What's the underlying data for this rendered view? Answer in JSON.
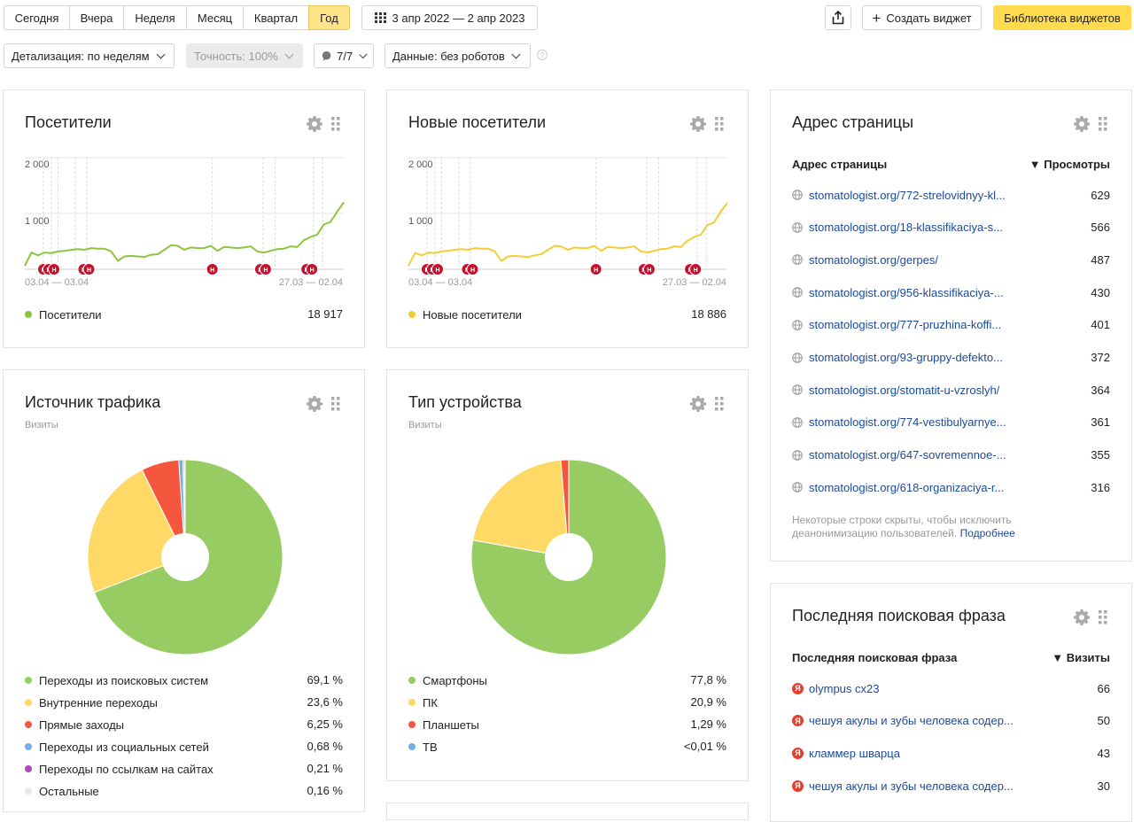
{
  "toolbar": {
    "periods": [
      "Сегодня",
      "Вчера",
      "Неделя",
      "Месяц",
      "Квартал",
      "Год"
    ],
    "active_period": "Год",
    "date_range": "3 апр 2022 — 2 апр 2023",
    "create_widget": "Создать виджет",
    "library": "Библиотека виджетов"
  },
  "filters": {
    "detail": "Детализация: по неделям",
    "accuracy": "Точность: 100%",
    "segments": "7/7",
    "data": "Данные: без роботов"
  },
  "visitors": {
    "title": "Посетители",
    "y_ticks": [
      "2 000",
      "1 000"
    ],
    "date_left": "03.04 — 03.04",
    "date_right": "27.03 — 02.04",
    "legend_label": "Посетители",
    "total": "18 917"
  },
  "new_visitors": {
    "title": "Новые посетители",
    "y_ticks": [
      "2 000",
      "1 000"
    ],
    "date_left": "03.04 — 03.04",
    "date_right": "27.03 — 02.04",
    "legend_label": "Новые посетители",
    "total": "18 886"
  },
  "chart_data": [
    {
      "type": "line",
      "ylim": [
        0,
        2000
      ],
      "series": [
        {
          "name": "Посетители",
          "color": "#8cc63e",
          "values": [
            60,
            300,
            250,
            300,
            290,
            320,
            330,
            350,
            360,
            350,
            380,
            370,
            370,
            320,
            150,
            230,
            240,
            230,
            220,
            260,
            270,
            350,
            430,
            420,
            350,
            390,
            380,
            380,
            420,
            330,
            400,
            390,
            380,
            390,
            410,
            320,
            300,
            330,
            360,
            370,
            410,
            400,
            520,
            580,
            620,
            800,
            850,
            1030,
            1200
          ]
        }
      ]
    },
    {
      "type": "line",
      "ylim": [
        0,
        2000
      ],
      "series": [
        {
          "name": "Новые посетители",
          "color": "#f3cd34",
          "values": [
            60,
            290,
            250,
            300,
            290,
            320,
            330,
            350,
            360,
            350,
            380,
            370,
            370,
            320,
            150,
            230,
            240,
            230,
            220,
            250,
            270,
            350,
            420,
            410,
            350,
            390,
            380,
            380,
            420,
            330,
            400,
            390,
            380,
            390,
            410,
            320,
            300,
            330,
            360,
            370,
            410,
            400,
            510,
            580,
            620,
            790,
            840,
            1030,
            1190
          ]
        }
      ]
    },
    {
      "type": "pie",
      "title": "Источник трафика",
      "labels": [
        "Переходы из поисковых систем",
        "Внутренние переходы",
        "Прямые заходы",
        "Переходы из социальных сетей",
        "Переходы по ссылкам на сайтах",
        "Остальные"
      ],
      "values": [
        69.1,
        23.6,
        6.25,
        0.68,
        0.21,
        0.16
      ],
      "colors": [
        "#96cc62",
        "#ffd966",
        "#f4573d",
        "#73aee6",
        "#a94bba",
        "#e6e6e6"
      ]
    },
    {
      "type": "pie",
      "title": "Тип устройства",
      "labels": [
        "Смартфоны",
        "ПК",
        "Планшеты",
        "ТВ"
      ],
      "values": [
        77.8,
        20.9,
        1.29,
        0.01
      ],
      "colors": [
        "#96cc62",
        "#ffd966",
        "#f4573d",
        "#73aee6"
      ]
    }
  ],
  "traffic": {
    "title": "Источник трафика",
    "subtitle": "Визиты",
    "rows": [
      {
        "label": "Переходы из поисковых систем",
        "value": "69,1 %",
        "color": "#96cc62"
      },
      {
        "label": "Внутренние переходы",
        "value": "23,6 %",
        "color": "#ffd966"
      },
      {
        "label": "Прямые заходы",
        "value": "6,25 %",
        "color": "#f4573d"
      },
      {
        "label": "Переходы из социальных сетей",
        "value": "0,68 %",
        "color": "#73aee6"
      },
      {
        "label": "Переходы по ссылкам на сайтах",
        "value": "0,21 %",
        "color": "#a94bba"
      },
      {
        "label": "Остальные",
        "value": "0,16 %",
        "color": "#e6e6e6"
      }
    ]
  },
  "device": {
    "title": "Тип устройства",
    "subtitle": "Визиты",
    "rows": [
      {
        "label": "Смартфоны",
        "value": "77,8 %",
        "color": "#96cc62"
      },
      {
        "label": "ПК",
        "value": "20,9 %",
        "color": "#ffd966"
      },
      {
        "label": "Планшеты",
        "value": "1,29 %",
        "color": "#f4573d"
      },
      {
        "label": "ТВ",
        "value": "<0,01 %",
        "color": "#73aee6"
      }
    ]
  },
  "pages": {
    "title": "Адрес страницы",
    "col1": "Адрес страницы",
    "col2": "▼ Просмотры",
    "rows": [
      {
        "url": "stomatologist.org/772-strelovidnyy-kl...",
        "value": "629"
      },
      {
        "url": "stomatologist.org/18-klassifikaciya-s...",
        "value": "566"
      },
      {
        "url": "stomatologist.org/gerpes/",
        "value": "487"
      },
      {
        "url": "stomatologist.org/956-klassifikaciya-...",
        "value": "430"
      },
      {
        "url": "stomatologist.org/777-pruzhina-koffi...",
        "value": "401"
      },
      {
        "url": "stomatologist.org/93-gruppy-defekto...",
        "value": "372"
      },
      {
        "url": "stomatologist.org/stomatit-u-vzroslyh/",
        "value": "364"
      },
      {
        "url": "stomatologist.org/774-vestibulyarnye...",
        "value": "361"
      },
      {
        "url": "stomatologist.org/647-sovremennoe-...",
        "value": "355"
      },
      {
        "url": "stomatologist.org/618-organizaciya-r...",
        "value": "316"
      }
    ],
    "note_line1": "Некоторые строки скрыты, чтобы исключить",
    "note_line2": "деанонимизацию пользователей.",
    "note_link": "Подробнее"
  },
  "search": {
    "title": "Последняя поисковая фраза",
    "col1": "Последняя поисковая фраза",
    "col2": "▼ Визиты",
    "rows": [
      {
        "phrase": "olympus cx23",
        "value": "66"
      },
      {
        "phrase": "чешуя акулы и зубы человека содер...",
        "value": "50"
      },
      {
        "phrase": "кламмер шварца",
        "value": "43"
      },
      {
        "phrase": "чешуя акулы и зубы человека содер...",
        "value": "30"
      }
    ]
  }
}
